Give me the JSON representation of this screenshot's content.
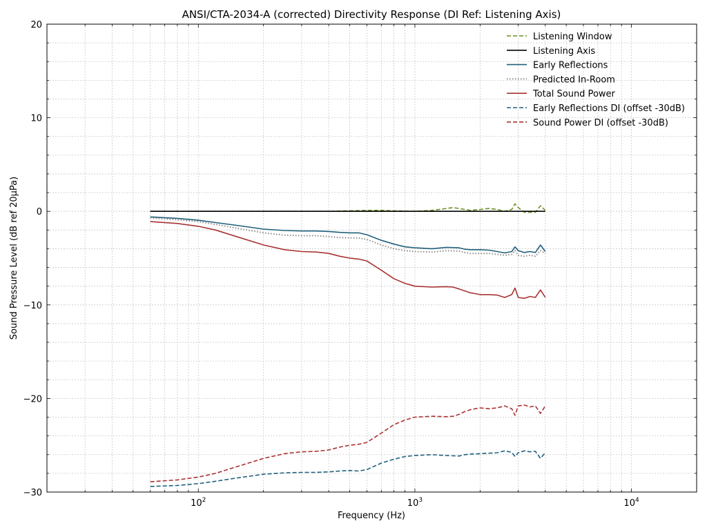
{
  "chart_data": {
    "type": "line",
    "title": "ANSI/CTA-2034-A (corrected) Directivity Response (DI Ref: Listening Axis)",
    "xlabel": "Frequency (Hz)",
    "ylabel": "Sound Pressure Level (dB ref 20µPa)",
    "xscale": "log",
    "xlim": [
      20,
      20000
    ],
    "ylim": [
      -30,
      20
    ],
    "grid": true,
    "legend_position": "top-right",
    "x_tick_labels": [
      {
        "value": 100,
        "base": "10",
        "exp": "2"
      },
      {
        "value": 1000,
        "base": "10",
        "exp": "3"
      },
      {
        "value": 10000,
        "base": "10",
        "exp": "4"
      }
    ],
    "y_ticks": [
      20,
      10,
      0,
      -10,
      -20,
      -30
    ],
    "y_tick_labels": [
      "20",
      "10",
      "0",
      "−10",
      "−20",
      "−30"
    ],
    "series": [
      {
        "name": "Listening Window",
        "color": "#6b8e23",
        "dash": "dashed",
        "x": [
          60,
          200,
          300,
          400,
          500,
          600,
          700,
          800,
          1000,
          1200,
          1400,
          1500,
          1600,
          1800,
          2000,
          2200,
          2400,
          2600,
          2800,
          2900,
          3000,
          3200,
          3400,
          3600,
          3800,
          4000
        ],
        "y": [
          0,
          0,
          0,
          0,
          0.05,
          0.1,
          0.1,
          0.05,
          0,
          0.1,
          0.3,
          0.4,
          0.3,
          0.1,
          0.2,
          0.3,
          0.2,
          0,
          0.2,
          0.8,
          0.4,
          -0.1,
          -0.1,
          -0.1,
          0.6,
          0.1
        ]
      },
      {
        "name": "Listening Axis",
        "color": "#000000",
        "dash": "solid",
        "x": [
          60,
          4000
        ],
        "y": [
          0,
          0
        ]
      },
      {
        "name": "Early Reflections",
        "color": "#1f5f7a",
        "dash": "solid",
        "x": [
          60,
          80,
          100,
          120,
          150,
          200,
          250,
          300,
          350,
          400,
          450,
          500,
          550,
          600,
          700,
          800,
          900,
          1000,
          1200,
          1400,
          1600,
          1700,
          1800,
          2000,
          2200,
          2400,
          2600,
          2800,
          2900,
          3000,
          3200,
          3400,
          3600,
          3800,
          4000
        ],
        "y": [
          -0.6,
          -0.75,
          -0.95,
          -1.2,
          -1.5,
          -1.9,
          -2.05,
          -2.1,
          -2.1,
          -2.15,
          -2.25,
          -2.3,
          -2.3,
          -2.5,
          -3.1,
          -3.5,
          -3.8,
          -3.9,
          -4.0,
          -3.85,
          -3.9,
          -4.05,
          -4.1,
          -4.1,
          -4.15,
          -4.3,
          -4.45,
          -4.3,
          -3.8,
          -4.2,
          -4.4,
          -4.3,
          -4.4,
          -3.6,
          -4.3
        ]
      },
      {
        "name": "Predicted In-Room",
        "color": "#888888",
        "dash": "dotted",
        "x": [
          60,
          80,
          100,
          120,
          150,
          200,
          250,
          300,
          350,
          400,
          450,
          500,
          550,
          600,
          700,
          800,
          900,
          1000,
          1200,
          1400,
          1600,
          1700,
          1800,
          2000,
          2200,
          2400,
          2600,
          2800,
          2900,
          3000,
          3200,
          3400,
          3600,
          3800,
          4000
        ],
        "y": [
          -0.7,
          -0.9,
          -1.1,
          -1.4,
          -1.8,
          -2.3,
          -2.55,
          -2.6,
          -2.6,
          -2.7,
          -2.8,
          -2.85,
          -2.85,
          -3.0,
          -3.6,
          -4.0,
          -4.2,
          -4.3,
          -4.35,
          -4.2,
          -4.25,
          -4.4,
          -4.5,
          -4.5,
          -4.5,
          -4.6,
          -4.7,
          -4.6,
          -4.2,
          -4.7,
          -4.8,
          -4.7,
          -4.8,
          -4.2,
          -4.5
        ]
      },
      {
        "name": "Total Sound Power",
        "color": "#a83232",
        "dash": "solid",
        "x": [
          60,
          80,
          100,
          120,
          150,
          200,
          250,
          300,
          350,
          400,
          450,
          500,
          550,
          600,
          700,
          800,
          900,
          1000,
          1200,
          1400,
          1500,
          1600,
          1700,
          1800,
          1900,
          2000,
          2200,
          2400,
          2600,
          2800,
          2900,
          3000,
          3200,
          3400,
          3600,
          3800,
          4000
        ],
        "y": [
          -1.1,
          -1.3,
          -1.6,
          -2.0,
          -2.7,
          -3.6,
          -4.1,
          -4.3,
          -4.35,
          -4.5,
          -4.8,
          -5.0,
          -5.1,
          -5.3,
          -6.3,
          -7.2,
          -7.7,
          -8.0,
          -8.1,
          -8.05,
          -8.1,
          -8.3,
          -8.5,
          -8.7,
          -8.8,
          -8.9,
          -8.9,
          -8.95,
          -9.2,
          -8.9,
          -8.2,
          -9.2,
          -9.3,
          -9.1,
          -9.2,
          -8.4,
          -9.2
        ]
      },
      {
        "name": "Early Reflections DI (offset -30dB)",
        "color": "#1f5f7a",
        "dash": "dashed",
        "x": [
          60,
          80,
          100,
          120,
          150,
          200,
          250,
          300,
          350,
          400,
          450,
          500,
          550,
          600,
          700,
          800,
          900,
          1000,
          1200,
          1400,
          1600,
          1700,
          1800,
          2000,
          2200,
          2400,
          2600,
          2800,
          2900,
          3000,
          3200,
          3400,
          3600,
          3800,
          4000
        ],
        "y": [
          -29.4,
          -29.3,
          -29.1,
          -28.85,
          -28.5,
          -28.1,
          -27.95,
          -27.9,
          -27.9,
          -27.85,
          -27.75,
          -27.7,
          -27.75,
          -27.6,
          -26.9,
          -26.5,
          -26.2,
          -26.1,
          -26.0,
          -26.1,
          -26.15,
          -26.0,
          -25.95,
          -25.9,
          -25.85,
          -25.8,
          -25.6,
          -25.75,
          -26.2,
          -25.8,
          -25.6,
          -25.7,
          -25.65,
          -26.4,
          -25.8
        ]
      },
      {
        "name": "Sound Power DI (offset -30dB)",
        "color": "#a83232",
        "dash": "dashed",
        "x": [
          60,
          80,
          100,
          120,
          150,
          200,
          250,
          300,
          350,
          400,
          450,
          500,
          550,
          600,
          700,
          800,
          900,
          1000,
          1200,
          1400,
          1500,
          1600,
          1700,
          1800,
          1900,
          2000,
          2200,
          2400,
          2600,
          2800,
          2900,
          3000,
          3200,
          3400,
          3600,
          3800,
          4000
        ],
        "y": [
          -28.9,
          -28.7,
          -28.4,
          -28.0,
          -27.3,
          -26.4,
          -25.9,
          -25.7,
          -25.65,
          -25.5,
          -25.2,
          -25.0,
          -24.9,
          -24.7,
          -23.7,
          -22.8,
          -22.3,
          -22.0,
          -21.9,
          -21.95,
          -21.9,
          -21.7,
          -21.4,
          -21.2,
          -21.1,
          -21.0,
          -21.1,
          -21.0,
          -20.8,
          -21.1,
          -21.8,
          -20.8,
          -20.7,
          -20.9,
          -20.8,
          -21.6,
          -20.8
        ]
      }
    ]
  }
}
